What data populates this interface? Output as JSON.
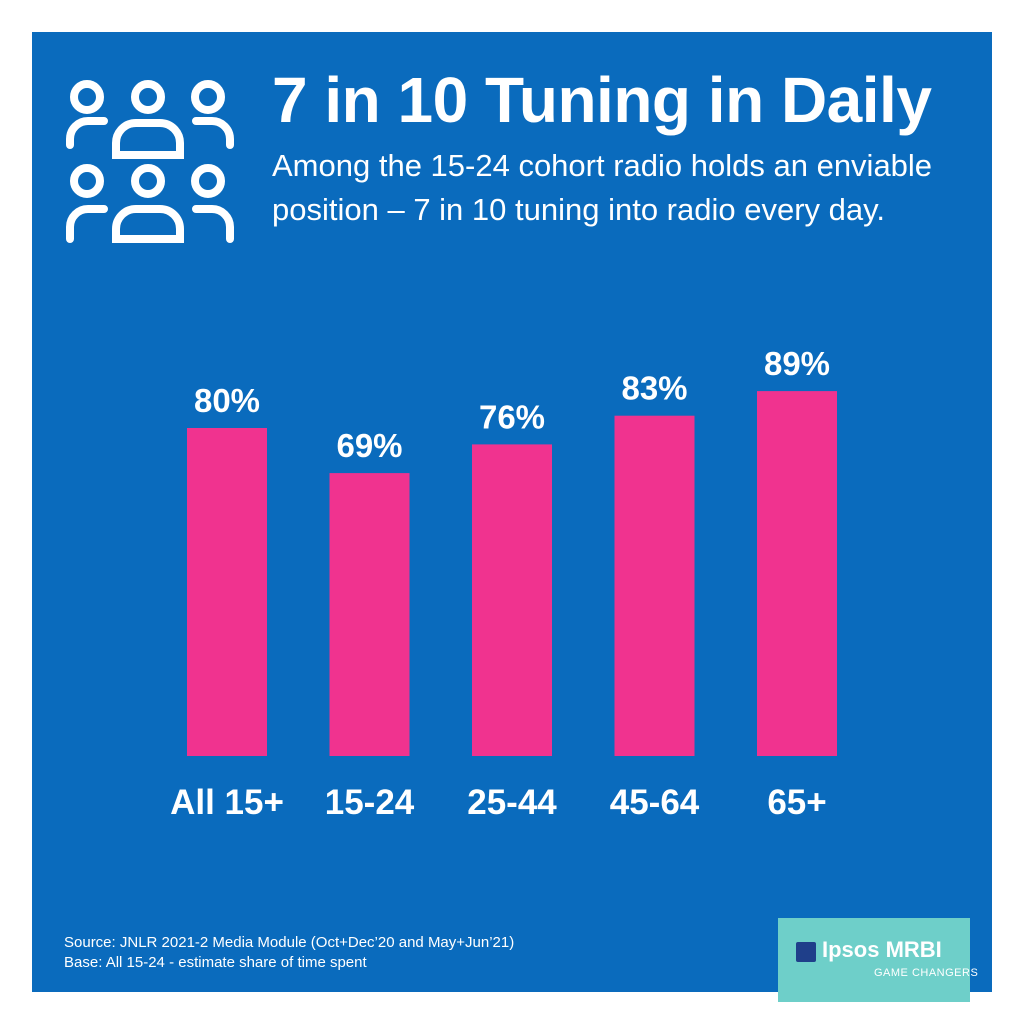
{
  "header": {
    "title": "7 in 10 Tuning in Daily",
    "subtitle": "Among the 15-24 cohort radio holds an enviable position – 7 in 10 tuning into radio every day.",
    "icon": "people-group-icon"
  },
  "chart_data": {
    "type": "bar",
    "categories": [
      "All 15+",
      "15-24",
      "25-44",
      "45-64",
      "65+"
    ],
    "values": [
      80,
      69,
      76,
      83,
      89
    ],
    "data_labels": [
      "80%",
      "69%",
      "76%",
      "83%",
      "89%"
    ],
    "title": "",
    "xlabel": "",
    "ylabel": "",
    "ylim": [
      0,
      100
    ],
    "grid": false,
    "bar_color": "#f0338f"
  },
  "footer": {
    "source": "Source: JNLR 2021-2 Media Module (Oct+Dec’20 and May+Jun’21)",
    "base": "Base: All 15-24 - estimate share of time spent"
  },
  "logo": {
    "mark": "Ipsos",
    "brand": "Ipsos MRBI",
    "tagline": "GAME CHANGERS"
  },
  "colors": {
    "background": "#0a6bbd",
    "bar": "#f0338f",
    "logo_bg": "#6ecfc9",
    "text": "#ffffff"
  }
}
